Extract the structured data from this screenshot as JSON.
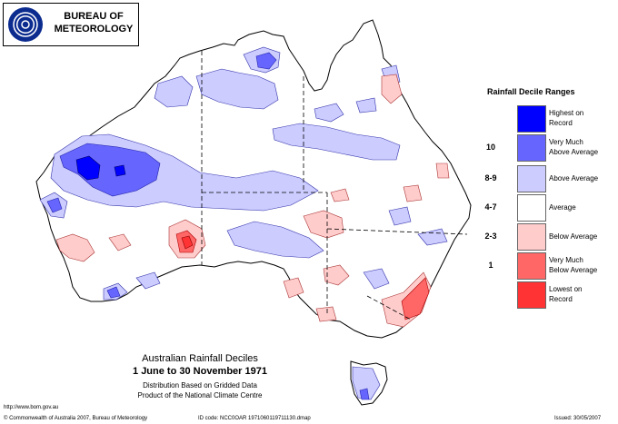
{
  "logo": {
    "line1": "BUREAU OF",
    "line2": "METEOROLOGY"
  },
  "legend": {
    "title": "Rainfall Decile Ranges",
    "items": [
      {
        "decile": "",
        "label": "Highest on Record",
        "color": "#0000ff"
      },
      {
        "decile": "10",
        "label": "Very Much Above Average",
        "color": "#6666ff"
      },
      {
        "decile": "8-9",
        "label": "Above Average",
        "color": "#ccccff"
      },
      {
        "decile": "4-7",
        "label": "Average",
        "color": "#ffffff"
      },
      {
        "decile": "2-3",
        "label": "Below Average",
        "color": "#ffcccc"
      },
      {
        "decile": "1",
        "label": "Very Much Below Average",
        "color": "#ff6666"
      },
      {
        "decile": "",
        "label": "Lowest on Record",
        "color": "#ff3333"
      }
    ]
  },
  "title": {
    "line1": "Australian Rainfall Deciles",
    "line2": "1 June to 30 November 1971",
    "line3": "Distribution Based on Gridded Data",
    "line4": "Product of the National Climate Centre"
  },
  "footer": {
    "url": "http://www.bom.gov.au",
    "copyright": "© Commonwealth of Australia 2007, Bureau of Meteorology",
    "id_code": "ID code: NCC0OAR 1971060119711130.dmap",
    "issued": "Issued: 30/05/2007"
  }
}
